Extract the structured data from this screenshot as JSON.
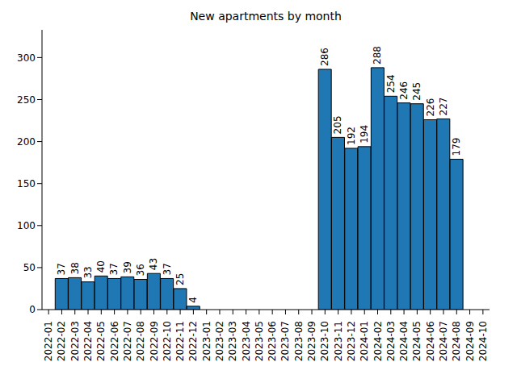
{
  "chart_data": {
    "type": "bar",
    "title": "New apartments by month",
    "categories": [
      "2022-01",
      "2022-02",
      "2022-03",
      "2022-04",
      "2022-05",
      "2022-06",
      "2022-07",
      "2022-08",
      "2022-09",
      "2022-10",
      "2022-11",
      "2022-12",
      "2023-01",
      "2023-02",
      "2023-03",
      "2023-04",
      "2023-05",
      "2023-06",
      "2023-07",
      "2023-08",
      "2023-09",
      "2023-10",
      "2023-11",
      "2023-12",
      "2024-01",
      "2024-02",
      "2024-03",
      "2024-04",
      "2024-05",
      "2024-06",
      "2024-07",
      "2024-08",
      "2024-09",
      "2024-10"
    ],
    "values": [
      null,
      37,
      38,
      33,
      40,
      37,
      39,
      36,
      43,
      37,
      25,
      4,
      0,
      0,
      0,
      0,
      0,
      0,
      0,
      0,
      0,
      286,
      205,
      192,
      194,
      288,
      254,
      246,
      245,
      226,
      227,
      179,
      null,
      null
    ],
    "color": "#1f77b4",
    "ylim": [
      0,
      333
    ],
    "yticks": [
      0,
      50,
      100,
      150,
      200,
      250,
      300
    ],
    "grid": false,
    "data_labels": true
  }
}
